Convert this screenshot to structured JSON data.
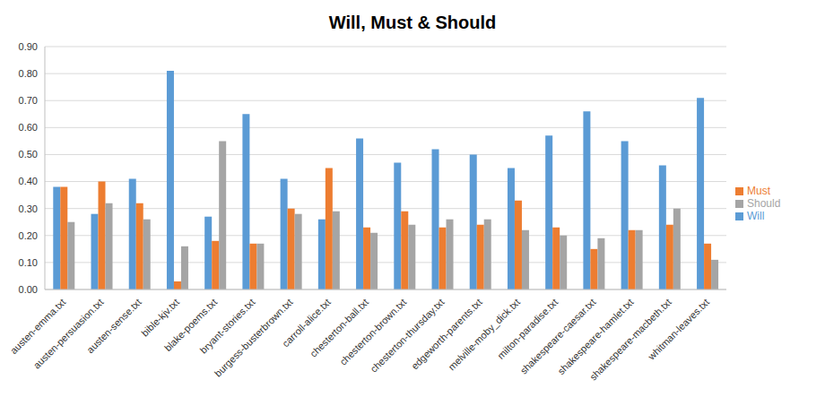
{
  "chart_data": {
    "type": "bar",
    "title": "Will, Must & Should",
    "categories": [
      "austen-emma.txt",
      "austen-persuasion.txt",
      "austen-sense.txt",
      "bible-kjv.txt",
      "blake-poems.txt",
      "bryant-stories.txt",
      "burgess-busterbrown.txt",
      "carroll-alice.txt",
      "chesterton-ball.txt",
      "chesterton-brown.txt",
      "chesterton-thursday.txt",
      "edgeworth-parents.txt",
      "melville-moby_dick.txt",
      "milton-paradise.txt",
      "shakespeare-caesar.txt",
      "shakespeare-hamlet.txt",
      "shakespeare-macbeth.txt",
      "whitman-leaves.txt"
    ],
    "series": [
      {
        "name": "Will",
        "color": "#5b9bd5",
        "values": [
          0.38,
          0.28,
          0.41,
          0.81,
          0.27,
          0.65,
          0.41,
          0.26,
          0.56,
          0.47,
          0.52,
          0.5,
          0.45,
          0.57,
          0.66,
          0.55,
          0.46,
          0.71
        ]
      },
      {
        "name": "Must",
        "color": "#ed7d31",
        "values": [
          0.38,
          0.4,
          0.32,
          0.03,
          0.18,
          0.17,
          0.3,
          0.45,
          0.23,
          0.29,
          0.23,
          0.24,
          0.33,
          0.23,
          0.15,
          0.22,
          0.24,
          0.17
        ]
      },
      {
        "name": "Should",
        "color": "#a5a5a5",
        "values": [
          0.25,
          0.32,
          0.26,
          0.16,
          0.55,
          0.17,
          0.28,
          0.29,
          0.21,
          0.24,
          0.26,
          0.26,
          0.22,
          0.2,
          0.19,
          0.22,
          0.3,
          0.11
        ]
      }
    ],
    "ylim": [
      0,
      0.9
    ],
    "yticks": [
      {
        "value": 0,
        "label": "0.00"
      },
      {
        "value": 0.1,
        "label": "0.10"
      },
      {
        "value": 0.2,
        "label": "0.20"
      },
      {
        "value": 0.3,
        "label": "0.30"
      },
      {
        "value": 0.4,
        "label": "0.40"
      },
      {
        "value": 0.5,
        "label": "0.50"
      },
      {
        "value": 0.6,
        "label": "0.60"
      },
      {
        "value": 0.7,
        "label": "0.70"
      },
      {
        "value": 0.8,
        "label": "0.80"
      },
      {
        "value": 0.9,
        "label": "0.90"
      }
    ],
    "grid": true,
    "legend": "right"
  }
}
